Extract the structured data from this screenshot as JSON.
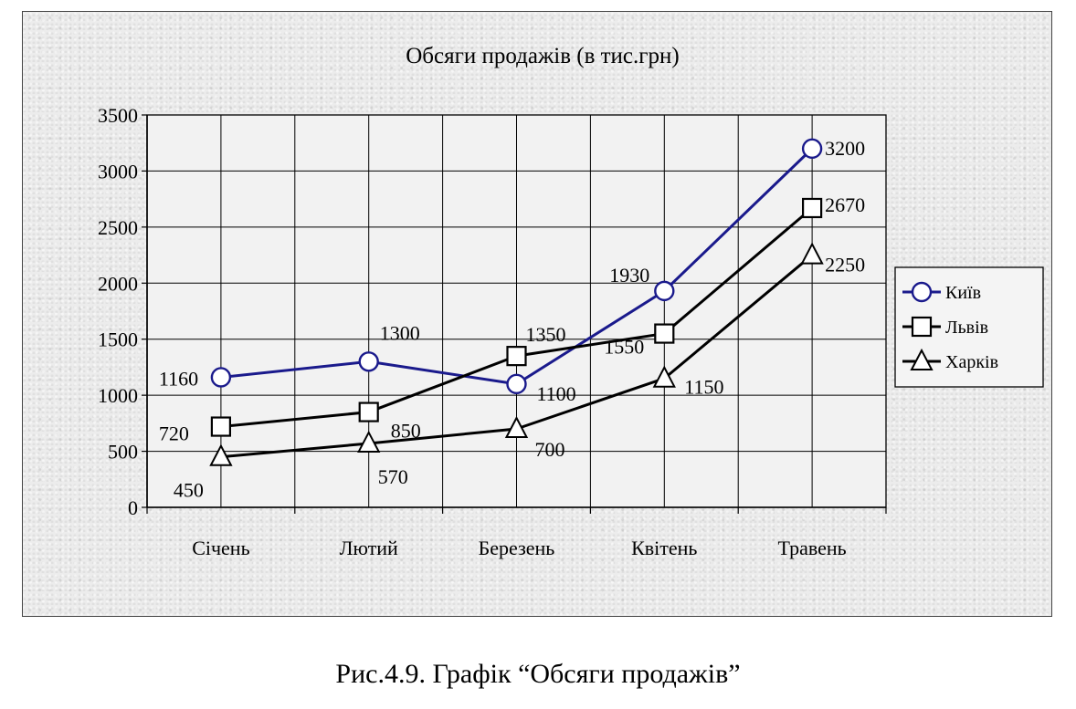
{
  "chart_data": {
    "type": "line",
    "title": "Обсяги продажів (в тис.грн)",
    "xlabel": "",
    "ylabel": "",
    "categories": [
      "Січень",
      "Лютий",
      "Березень",
      "Квітень",
      "Травень"
    ],
    "ylim": [
      0,
      3500
    ],
    "yticks": [
      "0",
      "500",
      "1000",
      "1500",
      "2000",
      "2500",
      "3000",
      "3500"
    ],
    "grid": true,
    "legend_position": "right",
    "series": [
      {
        "name": "Київ",
        "values": [
          1160,
          1300,
          1100,
          1930,
          3200
        ],
        "labels": [
          "1160",
          "1300",
          "1100",
          "1930",
          "3200"
        ],
        "color": "#1a1a8c",
        "marker": "circle"
      },
      {
        "name": "Львів",
        "values": [
          720,
          850,
          1350,
          1550,
          2670
        ],
        "labels": [
          "720",
          "850",
          "1350",
          "1550",
          "2670"
        ],
        "color": "#000000",
        "marker": "square"
      },
      {
        "name": "Харків",
        "values": [
          450,
          570,
          700,
          1150,
          2250
        ],
        "labels": [
          "450",
          "570",
          "700",
          "1150",
          "2250"
        ],
        "color": "#000000",
        "marker": "triangle"
      }
    ]
  },
  "caption": "Рис.4.9. Графік “Обсяги продажів”"
}
